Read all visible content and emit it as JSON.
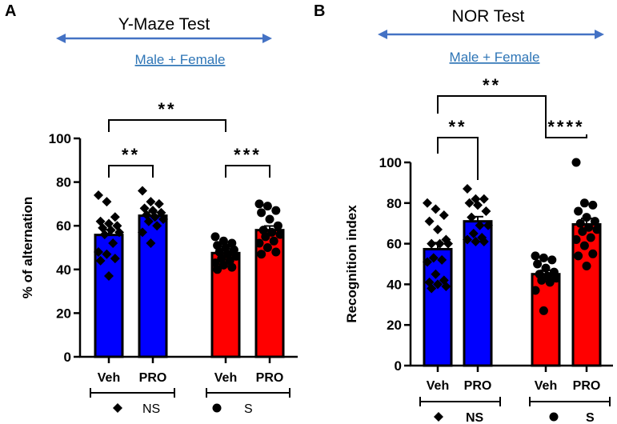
{
  "chart_data": [
    {
      "type": "bar",
      "panel_label": "A",
      "title": "Y-Maze Test",
      "subtitle": "Male + Female",
      "ylabel": "% of alternation",
      "ylim": [
        0,
        100
      ],
      "yticks": [
        "0",
        "20",
        "40",
        "60",
        "80",
        "100"
      ],
      "categories": [
        "Veh",
        "PRO",
        "Veh",
        "PRO"
      ],
      "groups": [
        {
          "label": "NS",
          "marker": "diamond"
        },
        {
          "label": "S",
          "marker": "circle"
        }
      ],
      "series": [
        {
          "group": "NS",
          "category": "Veh",
          "color": "#0000ff",
          "mean": 55.8,
          "sem": 2.4,
          "points": [
            74,
            71,
            64,
            62,
            61,
            60,
            59,
            58,
            57,
            56,
            52,
            48,
            47,
            45,
            44,
            37
          ]
        },
        {
          "group": "NS",
          "category": "PRO",
          "color": "#0000ff",
          "mean": 64.6,
          "sem": 1.6,
          "points": [
            76,
            71,
            70,
            68,
            67,
            66,
            65,
            64,
            63,
            62,
            60,
            57,
            52
          ]
        },
        {
          "group": "S",
          "category": "Veh",
          "color": "#ff0000",
          "mean": 47.5,
          "sem": 1.0,
          "points": [
            55,
            53,
            52,
            51,
            50,
            49,
            48,
            47,
            46,
            45,
            44,
            43,
            42,
            41,
            40
          ]
        },
        {
          "group": "S",
          "category": "PRO",
          "color": "#ff0000",
          "mean": 58.0,
          "sem": 1.9,
          "points": [
            70,
            69,
            67,
            66,
            63,
            60,
            58,
            57,
            56,
            55,
            53,
            52,
            50,
            48,
            47
          ]
        }
      ],
      "significance": [
        {
          "from": 0,
          "to": 2,
          "label": "**"
        },
        {
          "from": 0,
          "to": 1,
          "label": "**"
        },
        {
          "from": 2,
          "to": 3,
          "label": "***"
        }
      ]
    },
    {
      "type": "bar",
      "panel_label": "B",
      "title": "NOR Test",
      "subtitle": "Male + Female",
      "ylabel": "Recognition index",
      "ylim": [
        0,
        100
      ],
      "yticks": [
        "0",
        "20",
        "40",
        "60",
        "80",
        "100"
      ],
      "categories": [
        "Veh",
        "PRO",
        "Veh",
        "PRO"
      ],
      "groups": [
        {
          "label": "NS",
          "marker": "diamond"
        },
        {
          "label": "S",
          "marker": "circle"
        }
      ],
      "series": [
        {
          "group": "NS",
          "category": "Veh",
          "color": "#0000ff",
          "mean": 57.3,
          "sem": 3.2,
          "points": [
            80,
            77,
            74,
            71,
            67,
            62,
            60,
            60,
            60,
            53,
            52,
            51,
            45,
            42,
            41,
            40,
            39,
            38
          ]
        },
        {
          "group": "NS",
          "category": "PRO",
          "color": "#0000ff",
          "mean": 71.0,
          "sem": 2.3,
          "points": [
            87,
            82,
            82,
            80,
            79,
            76,
            73,
            69,
            69,
            65,
            63,
            62,
            61,
            61
          ]
        },
        {
          "group": "S",
          "category": "Veh",
          "color": "#ff0000",
          "mean": 45.0,
          "sem": 1.9,
          "points": [
            54,
            53,
            52,
            50,
            48,
            46,
            45,
            44,
            43,
            42,
            41,
            37,
            27
          ]
        },
        {
          "group": "S",
          "category": "PRO",
          "color": "#ff0000",
          "mean": 69.5,
          "sem": 2.9,
          "points": [
            100,
            80,
            79,
            76,
            73,
            71,
            70,
            68,
            67,
            66,
            63,
            62,
            59,
            55,
            54,
            49
          ]
        }
      ],
      "significance": [
        {
          "from": 0,
          "to": 2,
          "label": "**"
        },
        {
          "from": 0,
          "to": 1,
          "label": "**"
        },
        {
          "from": 2,
          "to": 3,
          "label": "****"
        }
      ]
    }
  ],
  "colors": {
    "arrow": "#4472c4",
    "subtitle": "#2e75b6",
    "ns": "#0000ff",
    "s": "#ff0000"
  }
}
